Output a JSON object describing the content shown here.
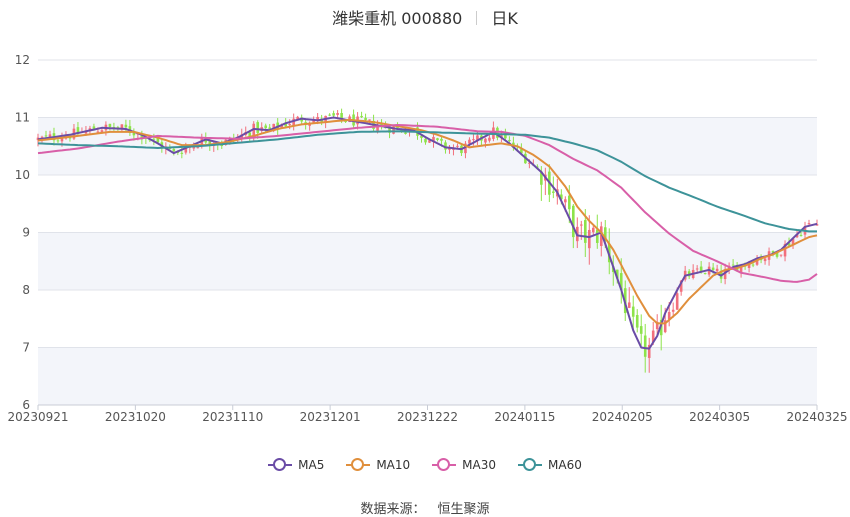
{
  "title": {
    "name": "潍柴重机 000880",
    "period": "日K"
  },
  "source": {
    "label": "数据来源：",
    "value": "恒生聚源"
  },
  "colors": {
    "up": "#f26f7c",
    "down": "#8de34a",
    "ma5": "#6a4ca6",
    "ma10": "#e08f3c",
    "ma30": "#d85fa8",
    "ma60": "#3d9399",
    "band": "#f3f5fa",
    "grid": "#e0e3ea"
  },
  "chart_data": {
    "type": "candlestick",
    "x_ticks": [
      "20230921",
      "20231020",
      "20231110",
      "20231201",
      "20231222",
      "20240115",
      "20240205",
      "20240305",
      "20240325"
    ],
    "y_ticks": [
      6,
      7,
      8,
      9,
      10,
      11,
      12
    ],
    "ylim": [
      6,
      12
    ],
    "series": [
      {
        "name": "MA5",
        "color": "#6a4ca6",
        "values": [
          [
            0,
            10.62
          ],
          [
            8,
            10.7
          ],
          [
            16,
            10.82
          ],
          [
            22,
            10.8
          ],
          [
            26,
            10.7
          ],
          [
            30,
            10.55
          ],
          [
            34,
            10.38
          ],
          [
            38,
            10.5
          ],
          [
            42,
            10.62
          ],
          [
            46,
            10.55
          ],
          [
            50,
            10.65
          ],
          [
            54,
            10.8
          ],
          [
            58,
            10.78
          ],
          [
            62,
            10.9
          ],
          [
            66,
            10.98
          ],
          [
            70,
            10.95
          ],
          [
            74,
            11.0
          ],
          [
            78,
            10.95
          ],
          [
            82,
            10.9
          ],
          [
            86,
            10.85
          ],
          [
            90,
            10.8
          ],
          [
            94,
            10.78
          ],
          [
            98,
            10.62
          ],
          [
            102,
            10.48
          ],
          [
            106,
            10.45
          ],
          [
            110,
            10.6
          ],
          [
            114,
            10.75
          ],
          [
            118,
            10.55
          ],
          [
            122,
            10.3
          ],
          [
            126,
            10.05
          ],
          [
            130,
            9.7
          ],
          [
            133,
            9.25
          ],
          [
            135,
            8.95
          ],
          [
            138,
            8.92
          ],
          [
            141,
            9.0
          ],
          [
            143,
            8.6
          ],
          [
            146,
            8.0
          ],
          [
            149,
            7.3
          ],
          [
            151,
            7.0
          ],
          [
            153,
            6.98
          ],
          [
            155,
            7.2
          ],
          [
            157,
            7.6
          ],
          [
            160,
            8.0
          ],
          [
            162,
            8.25
          ],
          [
            165,
            8.3
          ],
          [
            168,
            8.35
          ],
          [
            171,
            8.25
          ],
          [
            174,
            8.4
          ],
          [
            177,
            8.45
          ],
          [
            180,
            8.55
          ],
          [
            183,
            8.6
          ],
          [
            186,
            8.7
          ],
          [
            189,
            8.9
          ],
          [
            192,
            9.1
          ],
          [
            195,
            9.15
          ]
        ]
      },
      {
        "name": "MA10",
        "color": "#e08f3c",
        "values": [
          [
            0,
            10.6
          ],
          [
            10,
            10.68
          ],
          [
            18,
            10.75
          ],
          [
            24,
            10.75
          ],
          [
            30,
            10.65
          ],
          [
            36,
            10.52
          ],
          [
            42,
            10.52
          ],
          [
            48,
            10.58
          ],
          [
            54,
            10.68
          ],
          [
            60,
            10.8
          ],
          [
            66,
            10.88
          ],
          [
            72,
            10.92
          ],
          [
            78,
            10.96
          ],
          [
            84,
            10.92
          ],
          [
            90,
            10.85
          ],
          [
            96,
            10.78
          ],
          [
            100,
            10.7
          ],
          [
            104,
            10.6
          ],
          [
            108,
            10.48
          ],
          [
            112,
            10.52
          ],
          [
            116,
            10.55
          ],
          [
            120,
            10.5
          ],
          [
            124,
            10.35
          ],
          [
            128,
            10.15
          ],
          [
            132,
            9.8
          ],
          [
            135,
            9.45
          ],
          [
            138,
            9.2
          ],
          [
            141,
            9.0
          ],
          [
            144,
            8.7
          ],
          [
            147,
            8.3
          ],
          [
            150,
            7.9
          ],
          [
            153,
            7.55
          ],
          [
            155,
            7.42
          ],
          [
            157,
            7.42
          ],
          [
            160,
            7.6
          ],
          [
            163,
            7.85
          ],
          [
            166,
            8.05
          ],
          [
            169,
            8.25
          ],
          [
            172,
            8.35
          ],
          [
            175,
            8.38
          ],
          [
            178,
            8.45
          ],
          [
            181,
            8.55
          ],
          [
            184,
            8.62
          ],
          [
            187,
            8.72
          ],
          [
            190,
            8.82
          ],
          [
            193,
            8.92
          ],
          [
            195,
            8.95
          ]
        ]
      },
      {
        "name": "MA30",
        "color": "#d85fa8",
        "values": [
          [
            0,
            10.38
          ],
          [
            10,
            10.46
          ],
          [
            20,
            10.58
          ],
          [
            30,
            10.68
          ],
          [
            40,
            10.65
          ],
          [
            50,
            10.63
          ],
          [
            60,
            10.68
          ],
          [
            70,
            10.75
          ],
          [
            80,
            10.82
          ],
          [
            90,
            10.87
          ],
          [
            100,
            10.84
          ],
          [
            110,
            10.76
          ],
          [
            116,
            10.75
          ],
          [
            122,
            10.68
          ],
          [
            128,
            10.52
          ],
          [
            134,
            10.28
          ],
          [
            140,
            10.08
          ],
          [
            146,
            9.78
          ],
          [
            152,
            9.35
          ],
          [
            158,
            8.98
          ],
          [
            164,
            8.68
          ],
          [
            170,
            8.5
          ],
          [
            176,
            8.3
          ],
          [
            182,
            8.22
          ],
          [
            186,
            8.16
          ],
          [
            190,
            8.14
          ],
          [
            193,
            8.18
          ],
          [
            195,
            8.28
          ]
        ]
      },
      {
        "name": "MA60",
        "color": "#3d9399",
        "values": [
          [
            0,
            10.55
          ],
          [
            10,
            10.52
          ],
          [
            20,
            10.5
          ],
          [
            30,
            10.47
          ],
          [
            40,
            10.5
          ],
          [
            50,
            10.56
          ],
          [
            60,
            10.62
          ],
          [
            70,
            10.7
          ],
          [
            80,
            10.75
          ],
          [
            90,
            10.76
          ],
          [
            100,
            10.74
          ],
          [
            110,
            10.72
          ],
          [
            116,
            10.71
          ],
          [
            122,
            10.7
          ],
          [
            128,
            10.65
          ],
          [
            134,
            10.55
          ],
          [
            140,
            10.43
          ],
          [
            146,
            10.23
          ],
          [
            152,
            9.98
          ],
          [
            158,
            9.78
          ],
          [
            164,
            9.62
          ],
          [
            170,
            9.45
          ],
          [
            176,
            9.31
          ],
          [
            182,
            9.16
          ],
          [
            188,
            9.06
          ],
          [
            193,
            9.02
          ],
          [
            195,
            9.02
          ]
        ]
      }
    ]
  }
}
